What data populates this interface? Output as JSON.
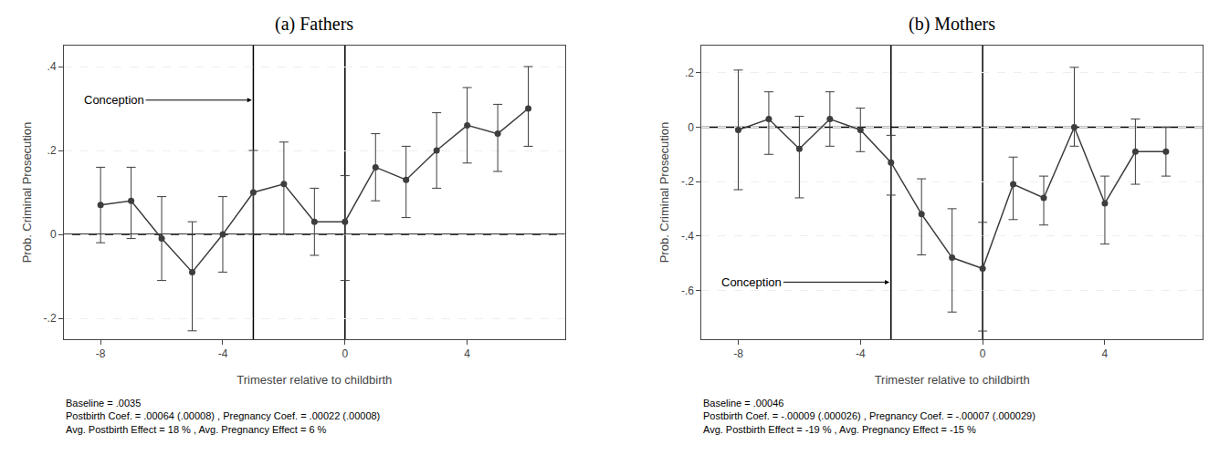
{
  "chart_data": [
    {
      "type": "line",
      "title": "(a) Fathers",
      "x_label": "Trimester relative to childbirth",
      "y_label": "Prob. Criminal Prosecution",
      "x": [
        -8,
        -7,
        -6,
        -5,
        -4,
        -3,
        -2,
        -1,
        0,
        1,
        2,
        3,
        4,
        5,
        6
      ],
      "series": [
        {
          "color": "#3d3d3d",
          "marker": "circle",
          "values": [
            0.07,
            0.08,
            -0.01,
            -0.09,
            0.0,
            0.1,
            0.12,
            0.03,
            0.03,
            0.16,
            0.13,
            0.2,
            0.26,
            0.24,
            0.3
          ],
          "error_low": [
            0.09,
            0.09,
            0.1,
            0.14,
            0.09,
            0.1,
            0.12,
            0.08,
            0.14,
            0.08,
            0.09,
            0.09,
            0.09,
            0.09,
            0.09
          ],
          "error_high": [
            0.09,
            0.08,
            0.1,
            0.12,
            0.09,
            0.1,
            0.1,
            0.08,
            0.11,
            0.08,
            0.08,
            0.09,
            0.09,
            0.07,
            0.1
          ]
        }
      ],
      "xlim": [
        -9.2,
        7.2
      ],
      "xticks": [
        -8,
        -4,
        0,
        4
      ],
      "ylim": [
        -0.25,
        0.45
      ],
      "yticks": [
        {
          "value": -0.2,
          "label": "-.2"
        },
        0,
        {
          "value": 0.2,
          "label": ".2"
        },
        {
          "value": 0.4,
          "label": ".4"
        }
      ],
      "grid": "y",
      "vlines": [
        -3,
        0
      ],
      "hlines": [
        0
      ],
      "rule_color": "#000000",
      "annotations": [
        {
          "text": "Conception",
          "x": -8.6,
          "y": 0.32,
          "arrow_x": -3.05,
          "arrow_y": 0.32
        },
        {
          "text": "Baseline = .0035"
        },
        {
          "text": "Postbirth Coef. = .00064 (.00008) , Pregnancy Coef. = .00022 (.00008)"
        },
        {
          "text": "Avg. Postbirth Effect = 18 % , Avg. Pregnancy Effect = 6 %"
        }
      ]
    },
    {
      "type": "line",
      "title": "(b) Mothers",
      "x_label": "Trimester relative to childbirth",
      "y_label": "Prob. Criminal Prosecution",
      "x": [
        -8,
        -7,
        -6,
        -5,
        -4,
        -3,
        -2,
        -1,
        0,
        1,
        2,
        3,
        4,
        5,
        6
      ],
      "series": [
        {
          "color": "#3d3d3d",
          "marker": "circle",
          "values": [
            -0.01,
            0.03,
            -0.08,
            0.03,
            -0.01,
            -0.13,
            -0.32,
            -0.48,
            -0.52,
            -0.21,
            -0.26,
            0.0,
            -0.28,
            -0.09,
            -0.09
          ],
          "error_low": [
            0.22,
            0.13,
            0.18,
            0.1,
            0.08,
            0.12,
            0.15,
            0.2,
            0.23,
            0.13,
            0.1,
            0.07,
            0.15,
            0.12,
            0.09
          ],
          "error_high": [
            0.22,
            0.1,
            0.12,
            0.1,
            0.08,
            0.1,
            0.13,
            0.18,
            0.17,
            0.1,
            0.08,
            0.22,
            0.1,
            0.12,
            0.09
          ]
        }
      ],
      "xlim": [
        -9.2,
        7.2
      ],
      "xticks": [
        -8,
        -4,
        0,
        4
      ],
      "ylim": [
        -0.78,
        0.3
      ],
      "yticks": [
        {
          "value": -0.6,
          "label": "-.6"
        },
        {
          "value": -0.4,
          "label": "-.4"
        },
        {
          "value": -0.2,
          "label": "-.2"
        },
        0,
        {
          "value": 0.2,
          "label": ".2"
        }
      ],
      "grid": "y",
      "vlines": [
        -3,
        0
      ],
      "hlines": [
        0
      ],
      "rule_color": "#000000",
      "annotations": [
        {
          "text": "Conception",
          "x": -8.6,
          "y": -0.57,
          "arrow_x": -3.05,
          "arrow_y": -0.57
        },
        {
          "text": "Baseline = .00046"
        },
        {
          "text": "Postbirth Coef. = -.00009 (.000026) , Pregnancy Coef. = -.00007 (.000029)"
        },
        {
          "text": "Avg. Postbirth Effect = -19 % , Avg. Pregnancy Effect = -15 %"
        }
      ]
    }
  ]
}
